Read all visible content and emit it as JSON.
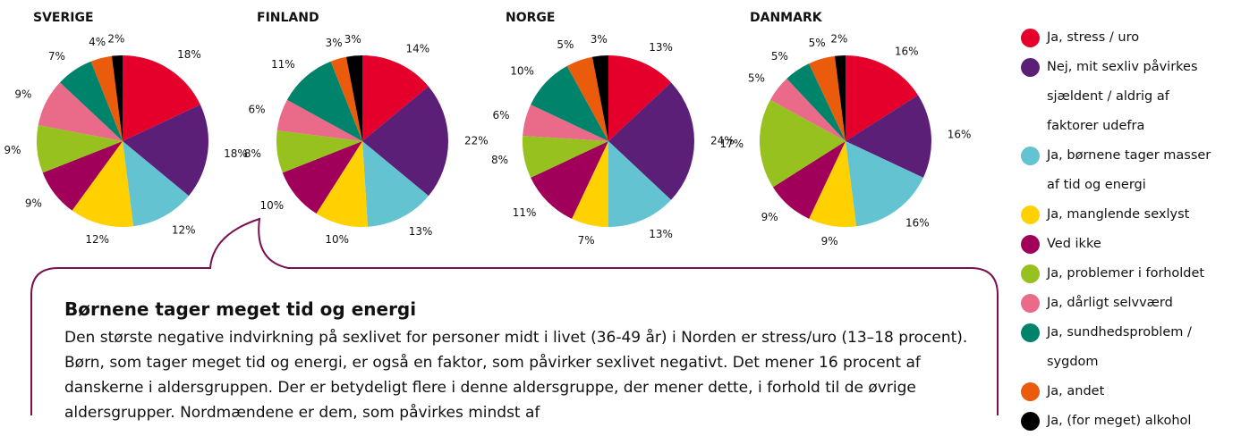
{
  "chart_data": [
    {
      "type": "pie",
      "title": "SVERIGE",
      "categories": [
        "Ja, stress / uro",
        "Nej, mit sexliv påvirkes sjældent / aldrig af faktorer udefra",
        "Ja, børnene tager masser af tid og energi",
        "Ja, manglende sexlyst",
        "Ved ikke",
        "Ja, problemer i forholdet",
        "Ja, dårligt selvværd",
        "Ja, sundhedsproblem / sygdom",
        "Ja, andet",
        "Ja, (for meget) alkohol"
      ],
      "values": [
        18,
        18,
        12,
        12,
        9,
        9,
        9,
        7,
        4,
        2
      ],
      "value_labels": [
        "18%",
        "18%",
        "12%",
        "12%",
        "9%",
        "9%",
        "9%",
        "7%",
        "4%",
        "2%"
      ],
      "colors": [
        "#e4002b",
        "#5c1f78",
        "#63c3d1",
        "#ffd100",
        "#a0005a",
        "#97c11f",
        "#ea6a8a",
        "#00836b",
        "#ea5b0c",
        "#000000"
      ]
    },
    {
      "type": "pie",
      "title": "FINLAND",
      "categories": [
        "Ja, stress / uro",
        "Nej, mit sexliv påvirkes sjældent / aldrig af faktorer udefra",
        "Ja, børnene tager masser af tid og energi",
        "Ja, manglende sexlyst",
        "Ved ikke",
        "Ja, problemer i forholdet",
        "Ja, dårligt selvværd",
        "Ja, sundhedsproblem / sygdom",
        "Ja, andet",
        "Ja, (for meget) alkohol"
      ],
      "values": [
        14,
        22,
        13,
        10,
        10,
        8,
        6,
        11,
        3,
        3
      ],
      "value_labels": [
        "14%",
        "22%",
        "13%",
        "10%",
        "10%",
        "8%",
        "6%",
        "11%",
        "3%",
        "3%"
      ],
      "colors": [
        "#e4002b",
        "#5c1f78",
        "#63c3d1",
        "#ffd100",
        "#a0005a",
        "#97c11f",
        "#ea6a8a",
        "#00836b",
        "#ea5b0c",
        "#000000"
      ]
    },
    {
      "type": "pie",
      "title": "NORGE",
      "categories": [
        "Ja, stress / uro",
        "Nej, mit sexliv påvirkes sjældent / aldrig af faktorer udefra",
        "Ja, børnene tager masser af tid og energi",
        "Ja, manglende sexlyst",
        "Ved ikke",
        "Ja, problemer i forholdet",
        "Ja, dårligt selvværd",
        "Ja, sundhedsproblem / sygdom",
        "Ja, andet",
        "Ja, (for meget) alkohol"
      ],
      "values": [
        13,
        24,
        13,
        7,
        11,
        8,
        6,
        10,
        5,
        3
      ],
      "value_labels": [
        "13%",
        "24%",
        "13%",
        "7%",
        "11%",
        "8%",
        "6%",
        "10%",
        "5%",
        "3%"
      ],
      "colors": [
        "#e4002b",
        "#5c1f78",
        "#63c3d1",
        "#ffd100",
        "#a0005a",
        "#97c11f",
        "#ea6a8a",
        "#00836b",
        "#ea5b0c",
        "#000000"
      ]
    },
    {
      "type": "pie",
      "title": "DANMARK",
      "categories": [
        "Ja, stress / uro",
        "Nej, mit sexliv påvirkes sjældent / aldrig af faktorer udefra",
        "Ja, børnene tager masser af tid og energi",
        "Ja, manglende sexlyst",
        "Ved ikke",
        "Ja, problemer i forholdet",
        "Ja, dårligt selvværd",
        "Ja, sundhedsproblem / sygdom",
        "Ja, andet",
        "Ja, (for meget) alkohol"
      ],
      "values": [
        16,
        16,
        16,
        9,
        9,
        17,
        5,
        5,
        5,
        2
      ],
      "value_labels": [
        "16%",
        "16%",
        "16%",
        "9%",
        "9%",
        "17%",
        "5%",
        "5%",
        "5%",
        "2%"
      ],
      "colors": [
        "#e4002b",
        "#5c1f78",
        "#63c3d1",
        "#ffd100",
        "#a0005a",
        "#97c11f",
        "#ea6a8a",
        "#00836b",
        "#ea5b0c",
        "#000000"
      ]
    }
  ],
  "callout": {
    "title": "Børnene tager meget tid og energi",
    "text": "Den største negative indvirkning på sexlivet for personer midt i livet (36-49 år) i Norden er stress/uro (13–18 procent). Børn, som tager meget tid og energi, er også en faktor, som påvirker sexlivet negativt. Det mener 16 procent af danskerne i aldersgruppen. Der er betydeligt flere i denne aldersgruppe, der mener dette, i forhold til de øvrige aldersgrupper. Nordmændene er dem, som påvirkes mindst af"
  }
}
